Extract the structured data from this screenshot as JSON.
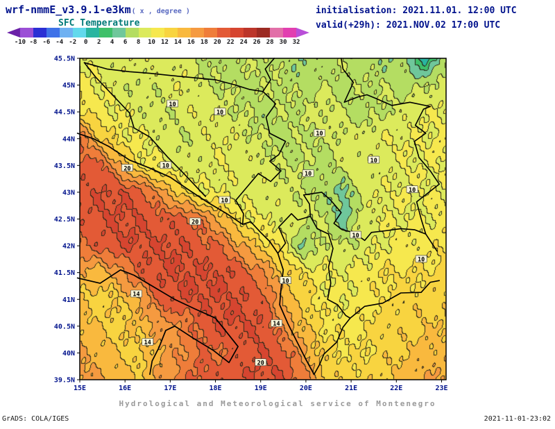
{
  "header": {
    "model_title": "wrf-nmmE_v3.9.1-e3km",
    "units_note": "( x , degree )",
    "field_title": "SFC Temperature",
    "init_label": "initialisation: 2021.11.01. 12:00 UTC",
    "valid_label": "valid(+29h): 2021.NOV.02 17:00 UTC"
  },
  "footer": {
    "credit": "Hydrological and Meteorological service of Montenegro",
    "grads_attribution": "GrADS: COLA/IGES",
    "timestamp": "2021-11-01-23:02"
  },
  "chart_data": {
    "type": "heatmap",
    "title": "SFC Temperature",
    "units": "degree",
    "lon_range": [
      15.0,
      23.1
    ],
    "lat_range": [
      39.5,
      45.5
    ],
    "x_tick_labels": [
      "15E",
      "16E",
      "17E",
      "18E",
      "19E",
      "20E",
      "21E",
      "22E",
      "23E"
    ],
    "x_tick_lons": [
      15,
      16,
      17,
      18,
      19,
      20,
      21,
      22,
      23
    ],
    "y_tick_labels": [
      "45.5N",
      "45N",
      "44.5N",
      "44N",
      "43.5N",
      "43N",
      "42.5N",
      "42N",
      "41.5N",
      "41N",
      "40.5N",
      "40N",
      "39.5N"
    ],
    "y_tick_lats": [
      45.5,
      45.0,
      44.5,
      44.0,
      43.5,
      43.0,
      42.5,
      42.0,
      41.5,
      41.0,
      40.5,
      40.0,
      39.5
    ],
    "levels": [
      -10,
      -8,
      -6,
      -4,
      -2,
      0,
      2,
      4,
      6,
      8,
      10,
      12,
      14,
      16,
      18,
      20,
      22,
      24,
      26,
      28,
      30,
      32
    ],
    "colorbar_tick_labels": [
      "-10",
      "-8",
      "-6",
      "-4",
      "-2",
      "0",
      "2",
      "4",
      "6",
      "8",
      "10",
      "12",
      "14",
      "16",
      "18",
      "20",
      "22",
      "24",
      "26",
      "28",
      "30",
      "32"
    ],
    "palette": [
      "#6b21a8",
      "#9b4fd6",
      "#2b2fd4",
      "#3f72e8",
      "#6fb1f2",
      "#62d9ec",
      "#2ab5a0",
      "#3fc06a",
      "#6fc79b",
      "#b4dd62",
      "#dcea5c",
      "#f6e84e",
      "#f8d440",
      "#f9b93e",
      "#f59a40",
      "#ef7d3a",
      "#e35a36",
      "#d64530",
      "#bc352a",
      "#9c2a22",
      "#e26fa8",
      "#e23fb0",
      "#b94fd8"
    ],
    "grid_lons": [
      15.0,
      15.45,
      15.9,
      16.35,
      16.8,
      17.25,
      17.7,
      18.15,
      18.6,
      19.05,
      19.5,
      19.95,
      20.4,
      20.85,
      21.3,
      21.75,
      22.2,
      22.65,
      23.1
    ],
    "grid_lats": [
      45.5,
      45.0,
      44.5,
      44.0,
      43.5,
      43.0,
      42.5,
      42.0,
      41.5,
      41.0,
      40.5,
      40.0,
      39.5
    ],
    "temperature_c": [
      [
        10,
        9,
        9,
        10,
        9,
        9,
        8,
        7,
        8,
        8,
        7,
        6,
        7,
        8,
        7,
        6,
        7,
        0,
        8
      ],
      [
        11,
        10,
        9,
        8,
        9,
        10,
        8,
        8,
        7,
        8,
        8,
        7,
        8,
        7,
        8,
        8,
        7,
        8,
        9
      ],
      [
        12,
        11,
        10,
        9,
        8,
        9,
        10,
        9,
        8,
        7,
        8,
        8,
        9,
        8,
        7,
        8,
        9,
        10,
        10
      ],
      [
        20,
        14,
        11,
        10,
        9,
        8,
        9,
        10,
        9,
        8,
        7,
        8,
        8,
        9,
        9,
        10,
        10,
        10,
        11
      ],
      [
        21,
        21,
        16,
        11,
        10,
        9,
        9,
        10,
        9,
        9,
        8,
        8,
        7,
        9,
        9,
        9,
        10,
        10,
        10
      ],
      [
        21,
        22,
        22,
        21,
        17,
        13,
        10,
        10,
        9,
        9,
        9,
        8,
        7,
        5,
        9,
        10,
        10,
        10,
        10
      ],
      [
        21,
        22,
        22,
        22,
        21,
        21,
        19,
        15,
        11,
        10,
        9,
        9,
        8,
        5,
        9,
        10,
        10,
        10,
        11
      ],
      [
        20,
        21,
        22,
        22,
        22,
        22,
        21,
        20,
        16,
        13,
        11,
        5,
        9,
        8,
        9,
        10,
        11,
        11,
        12
      ],
      [
        16,
        15,
        17,
        21,
        22,
        22,
        22,
        22,
        21,
        18,
        14,
        12,
        10,
        10,
        11,
        12,
        12,
        12,
        13
      ],
      [
        14,
        13,
        14,
        16,
        21,
        22,
        22,
        22,
        22,
        21,
        16,
        13,
        11,
        10,
        11,
        12,
        13,
        13,
        13
      ],
      [
        15,
        14,
        13,
        15,
        17,
        18,
        21,
        22,
        22,
        22,
        18,
        14,
        12,
        11,
        12,
        13,
        13,
        14,
        14
      ],
      [
        16,
        15,
        14,
        13,
        16,
        18,
        20,
        20,
        21,
        22,
        21,
        17,
        13,
        12,
        12,
        13,
        14,
        15,
        15
      ],
      [
        17,
        16,
        15,
        14,
        17,
        19,
        21,
        21,
        22,
        22,
        22,
        19,
        14,
        13,
        13,
        14,
        15,
        16,
        16
      ]
    ],
    "contour_labels": [
      {
        "value": "10",
        "lon": 17.05,
        "lat": 44.65
      },
      {
        "value": "10",
        "lon": 18.1,
        "lat": 44.5
      },
      {
        "value": "10",
        "lon": 16.9,
        "lat": 43.5
      },
      {
        "value": "10",
        "lon": 18.2,
        "lat": 42.85
      },
      {
        "value": "20",
        "lon": 16.05,
        "lat": 43.45
      },
      {
        "value": "20",
        "lon": 17.55,
        "lat": 42.45
      },
      {
        "value": "10",
        "lon": 21.5,
        "lat": 43.6
      },
      {
        "value": "10",
        "lon": 22.35,
        "lat": 43.05
      },
      {
        "value": "10",
        "lon": 22.55,
        "lat": 41.75
      },
      {
        "value": "10",
        "lon": 21.1,
        "lat": 42.2
      },
      {
        "value": "14",
        "lon": 16.25,
        "lat": 41.1
      },
      {
        "value": "14",
        "lon": 16.5,
        "lat": 40.2
      },
      {
        "value": "20",
        "lon": 19.0,
        "lat": 39.82
      },
      {
        "value": "10",
        "lon": 19.55,
        "lat": 41.35
      },
      {
        "value": "14",
        "lon": 19.35,
        "lat": 40.55
      },
      {
        "value": "10",
        "lon": 20.3,
        "lat": 44.1
      },
      {
        "value": "10",
        "lon": 20.05,
        "lat": 43.35
      }
    ],
    "coastlines": [
      [
        [
          14.95,
          44.1
        ],
        [
          15.3,
          44.0
        ],
        [
          15.65,
          43.85
        ],
        [
          16.1,
          43.6
        ],
        [
          16.55,
          43.45
        ],
        [
          17.0,
          43.28
        ],
        [
          17.4,
          43.05
        ],
        [
          17.85,
          42.8
        ],
        [
          18.25,
          42.6
        ],
        [
          18.6,
          42.4
        ],
        [
          18.78,
          42.45
        ],
        [
          19.0,
          42.25
        ],
        [
          19.2,
          42.08
        ],
        [
          19.38,
          41.86
        ],
        [
          19.5,
          41.55
        ],
        [
          19.45,
          41.2
        ],
        [
          19.42,
          40.9
        ],
        [
          19.6,
          40.55
        ],
        [
          19.82,
          40.18
        ],
        [
          20.0,
          39.88
        ],
        [
          20.18,
          39.6
        ]
      ],
      [
        [
          14.95,
          41.4
        ],
        [
          15.45,
          41.3
        ],
        [
          15.9,
          41.55
        ],
        [
          16.2,
          41.45
        ],
        [
          16.6,
          41.25
        ],
        [
          17.1,
          41.0
        ],
        [
          17.55,
          40.82
        ],
        [
          18.0,
          40.65
        ],
        [
          18.5,
          40.12
        ],
        [
          18.3,
          39.82
        ],
        [
          17.95,
          40.05
        ],
        [
          17.5,
          40.28
        ],
        [
          17.1,
          40.5
        ],
        [
          16.9,
          40.42
        ],
        [
          16.75,
          40.1
        ],
        [
          16.6,
          39.85
        ],
        [
          16.55,
          39.6
        ]
      ]
    ],
    "borders": [
      [
        [
          15.1,
          45.42
        ],
        [
          15.35,
          45.15
        ],
        [
          15.72,
          44.82
        ],
        [
          16.1,
          44.48
        ],
        [
          16.2,
          44.2
        ],
        [
          16.55,
          44.03
        ],
        [
          16.95,
          43.65
        ],
        [
          17.3,
          43.35
        ],
        [
          17.6,
          43.08
        ],
        [
          17.78,
          42.92
        ]
      ],
      [
        [
          15.1,
          45.42
        ],
        [
          15.6,
          45.3
        ],
        [
          16.1,
          45.25
        ],
        [
          16.55,
          45.22
        ],
        [
          17.0,
          45.18
        ],
        [
          17.5,
          45.14
        ],
        [
          18.0,
          45.1
        ],
        [
          18.45,
          45.0
        ],
        [
          18.75,
          44.92
        ],
        [
          19.05,
          44.88
        ],
        [
          19.22,
          45.1
        ],
        [
          19.1,
          45.3
        ],
        [
          19.3,
          45.5
        ]
      ],
      [
        [
          19.05,
          44.88
        ],
        [
          19.33,
          44.65
        ],
        [
          19.12,
          44.4
        ],
        [
          19.2,
          44.1
        ],
        [
          19.55,
          43.95
        ],
        [
          19.4,
          43.7
        ],
        [
          19.2,
          43.58
        ],
        [
          19.45,
          43.4
        ],
        [
          19.22,
          43.2
        ],
        [
          18.95,
          43.35
        ],
        [
          18.65,
          43.05
        ],
        [
          18.45,
          42.85
        ],
        [
          18.62,
          42.6
        ],
        [
          18.6,
          42.4
        ]
      ],
      [
        [
          19.38,
          41.86
        ],
        [
          19.55,
          42.05
        ],
        [
          19.4,
          42.35
        ],
        [
          19.68,
          42.6
        ],
        [
          19.82,
          42.48
        ],
        [
          20.1,
          42.55
        ],
        [
          20.08,
          42.78
        ],
        [
          19.95,
          42.95
        ],
        [
          20.35,
          43.0
        ],
        [
          20.55,
          42.85
        ],
        [
          20.78,
          42.62
        ],
        [
          20.62,
          42.42
        ],
        [
          20.8,
          42.3
        ],
        [
          21.05,
          42.25
        ],
        [
          21.3,
          42.1
        ],
        [
          21.45,
          42.25
        ],
        [
          21.75,
          42.28
        ],
        [
          22.1,
          42.32
        ],
        [
          22.4,
          42.3
        ],
        [
          22.65,
          42.22
        ],
        [
          22.9,
          41.9
        ]
      ],
      [
        [
          20.1,
          42.55
        ],
        [
          20.25,
          42.32
        ],
        [
          20.5,
          42.22
        ],
        [
          20.6,
          41.95
        ],
        [
          20.5,
          41.6
        ],
        [
          20.55,
          41.3
        ],
        [
          20.48,
          41.0
        ],
        [
          20.7,
          40.9
        ],
        [
          20.88,
          40.7
        ],
        [
          20.98,
          40.65
        ],
        [
          20.82,
          40.48
        ],
        [
          20.68,
          40.2
        ],
        [
          20.4,
          39.98
        ],
        [
          20.3,
          39.78
        ],
        [
          20.18,
          39.6
        ]
      ],
      [
        [
          20.98,
          40.65
        ],
        [
          21.3,
          40.87
        ],
        [
          21.7,
          40.93
        ],
        [
          22.1,
          41.12
        ],
        [
          22.55,
          41.13
        ],
        [
          22.75,
          41.32
        ],
        [
          22.95,
          41.35
        ]
      ],
      [
        [
          22.65,
          42.22
        ],
        [
          22.55,
          42.5
        ],
        [
          22.45,
          42.82
        ],
        [
          22.95,
          43.15
        ],
        [
          22.75,
          43.4
        ],
        [
          22.5,
          43.65
        ],
        [
          22.4,
          43.95
        ],
        [
          22.65,
          44.1
        ],
        [
          22.42,
          44.25
        ],
        [
          22.6,
          44.55
        ],
        [
          22.75,
          44.6
        ]
      ],
      [
        [
          22.75,
          44.6
        ],
        [
          22.3,
          44.68
        ],
        [
          21.9,
          44.62
        ],
        [
          21.55,
          44.75
        ],
        [
          21.35,
          44.82
        ],
        [
          21.15,
          44.78
        ],
        [
          20.85,
          44.68
        ],
        [
          21.05,
          45.05
        ],
        [
          20.82,
          45.3
        ],
        [
          20.78,
          45.5
        ]
      ]
    ]
  }
}
